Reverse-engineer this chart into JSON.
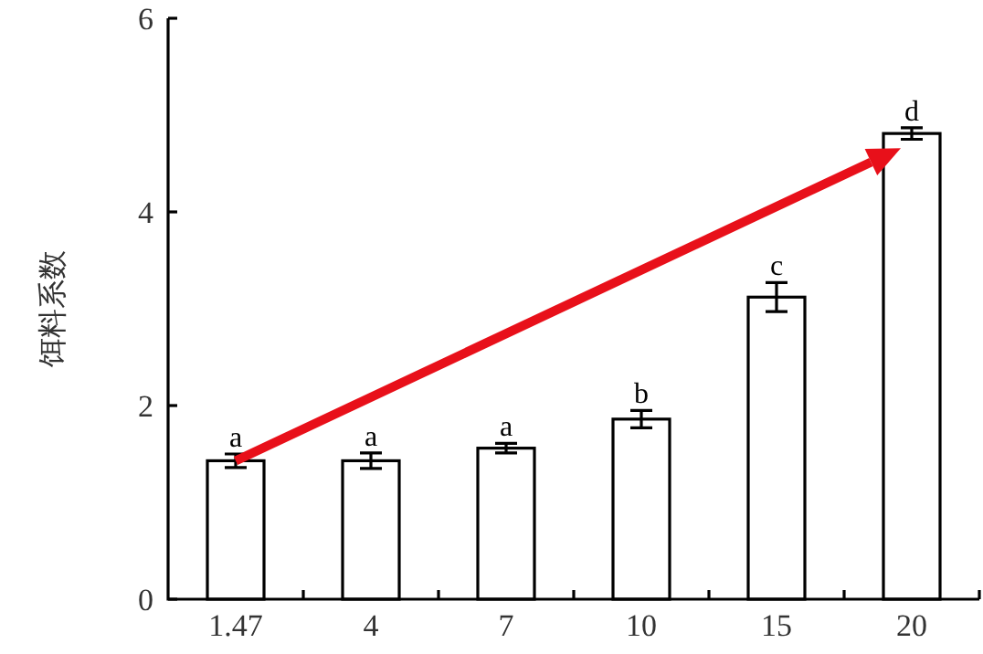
{
  "chart_data": {
    "type": "bar",
    "ylabel": "饵料系数",
    "categories": [
      "1.47",
      "4",
      "7",
      "10",
      "15",
      "20"
    ],
    "values": [
      1.43,
      1.43,
      1.56,
      1.86,
      3.12,
      4.81
    ],
    "errors": [
      0.07,
      0.08,
      0.05,
      0.09,
      0.15,
      0.06
    ],
    "color": "#ffffff",
    "ylim": [
      0,
      6
    ],
    "yticks": [
      0,
      2,
      4,
      6
    ],
    "annotations": [
      {
        "text": "a",
        "x": "1.47",
        "y": 1.5
      },
      {
        "text": "a",
        "x": "4",
        "y": 1.51
      },
      {
        "text": "a",
        "x": "7",
        "y": 1.61
      },
      {
        "text": "b",
        "x": "10",
        "y": 1.95
      },
      {
        "text": "c",
        "x": "15",
        "y": 3.27
      },
      {
        "text": "d",
        "x": "20",
        "y": 4.87
      }
    ]
  }
}
